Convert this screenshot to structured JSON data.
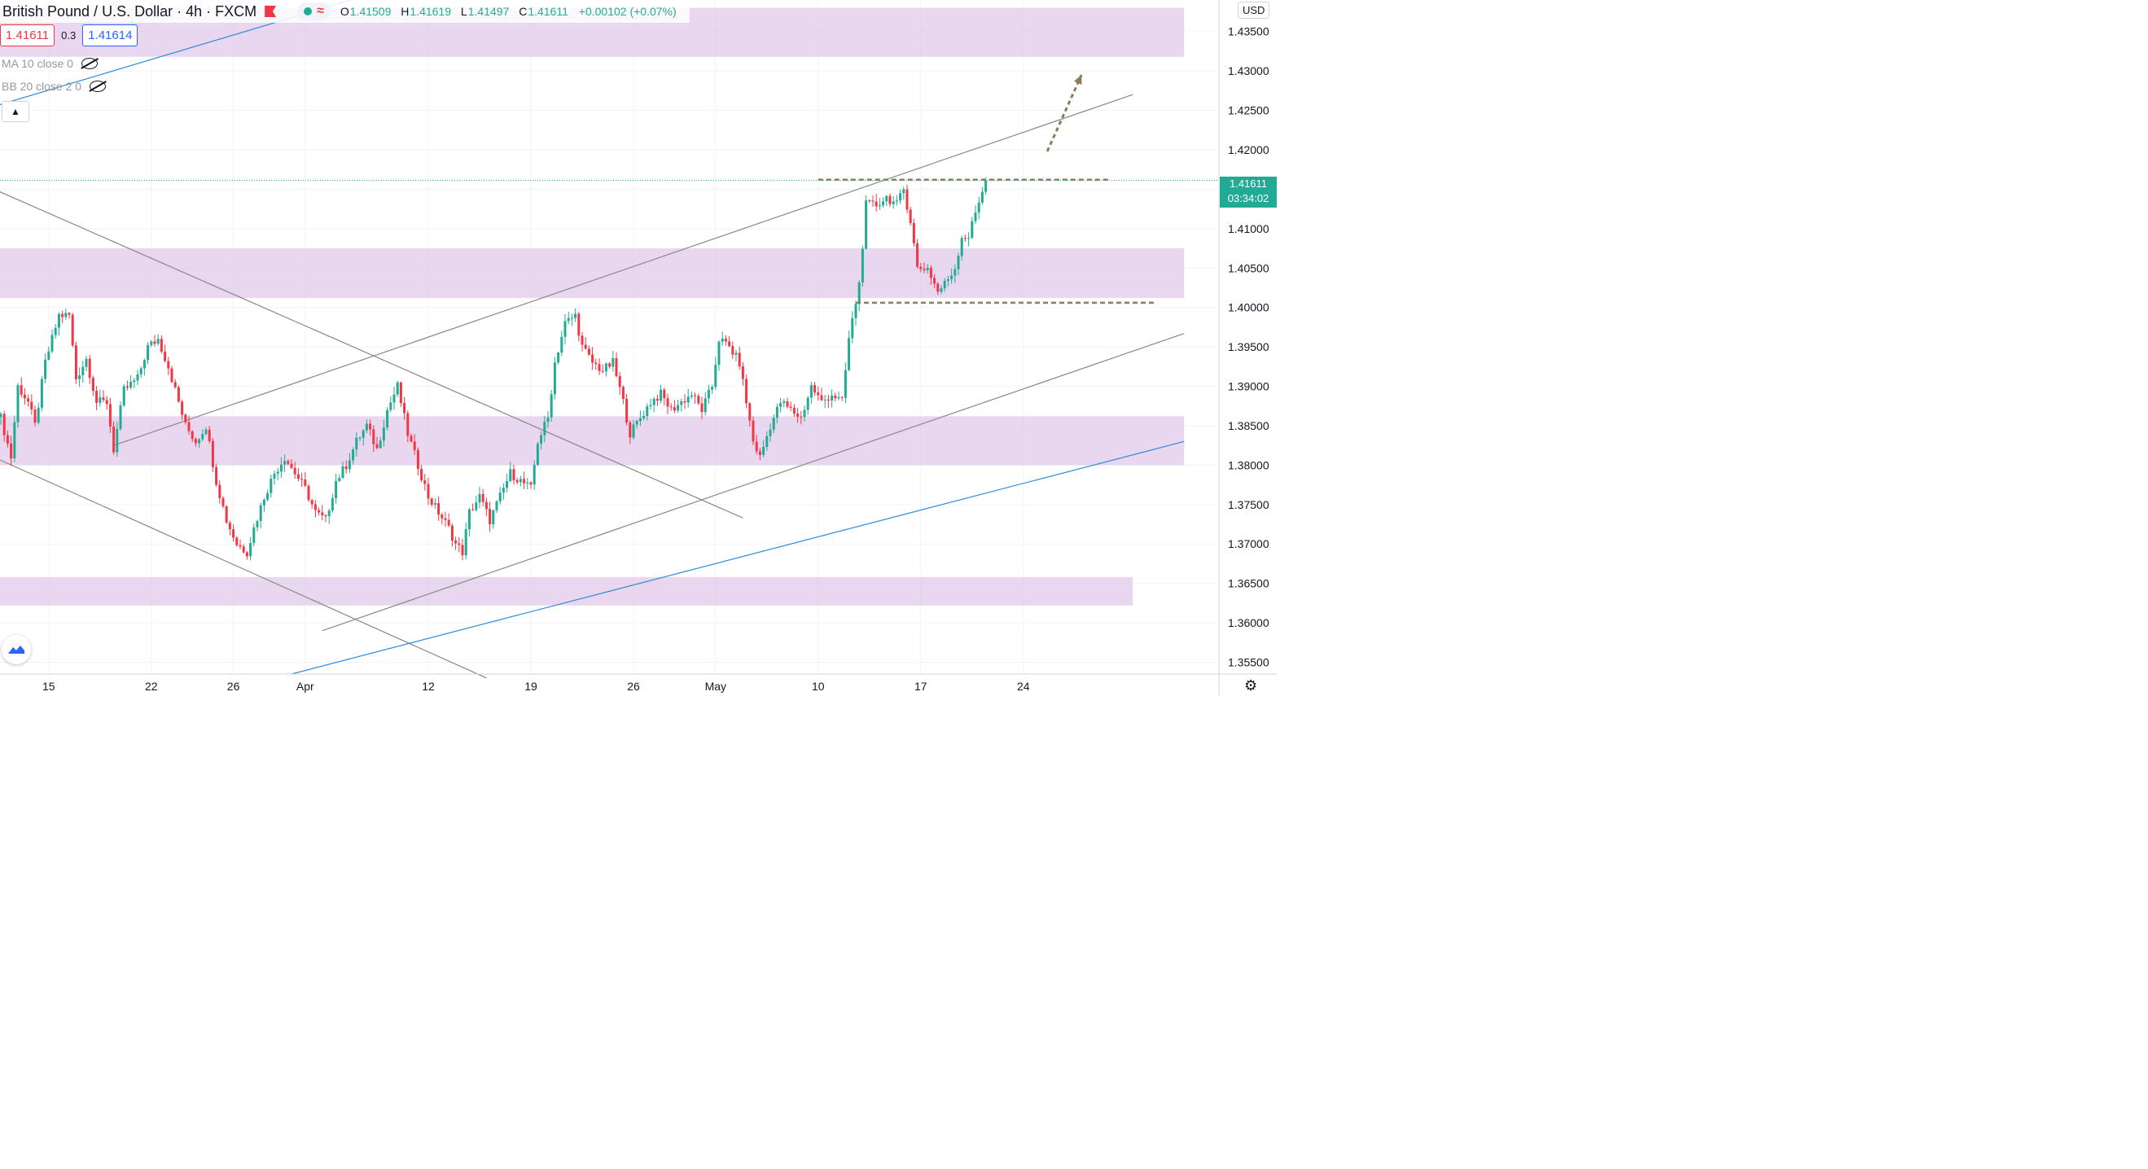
{
  "header": {
    "symbol": "British Pound / U.S. Dollar · 4h · FXCM",
    "ohlc": {
      "o_label": "O",
      "o": "1.41509",
      "h_label": "H",
      "h": "1.41619",
      "l_label": "L",
      "l": "1.41497",
      "c_label": "C",
      "c": "1.41611",
      "change": "+0.00102 (+0.07%)"
    }
  },
  "trade": {
    "sell": "1.41611",
    "spread": "0.3",
    "buy": "1.41614"
  },
  "indicators": [
    "MA 10 close 0",
    "BB 20 close 2 0"
  ],
  "currency": "USD",
  "last_price": {
    "price": "1.41611",
    "countdown": "03:34:02"
  },
  "colors": {
    "up": "#22ab94",
    "down": "#f23645",
    "zone": "#e1c8ea",
    "trendline": "#888888",
    "blue_line": "#2e8ad8",
    "level_dash": "#8c7d5a"
  },
  "icons": [
    "eye-hidden-icon",
    "chevron-up-icon",
    "flag-icon",
    "tradingview-logo-icon",
    "settings-icon"
  ],
  "chart_data": {
    "type": "candlestick",
    "y_ticks": [
      "1.43500",
      "1.43000",
      "1.42500",
      "1.42000",
      "1.41500",
      "1.41000",
      "1.40500",
      "1.40000",
      "1.39500",
      "1.39000",
      "1.38500",
      "1.38000",
      "1.37500",
      "1.37000",
      "1.36500",
      "1.36000",
      "1.35500"
    ],
    "x_ticks": [
      {
        "label": "15",
        "i": 14
      },
      {
        "label": "22",
        "i": 44
      },
      {
        "label": "26",
        "i": 68
      },
      {
        "label": "Apr",
        "i": 89
      },
      {
        "label": "12",
        "i": 125
      },
      {
        "label": "19",
        "i": 155
      },
      {
        "label": "26",
        "i": 185
      },
      {
        "label": "May",
        "i": 209
      },
      {
        "label": "10",
        "i": 239
      },
      {
        "label": "17",
        "i": 269
      },
      {
        "label": "24",
        "i": 299
      }
    ],
    "ylim": [
      1.3535,
      1.439
    ],
    "x_slots": 328,
    "anchors": [
      [
        0,
        1.386
      ],
      [
        3,
        1.381
      ],
      [
        5,
        1.39
      ],
      [
        8,
        1.388
      ],
      [
        10,
        1.385
      ],
      [
        13,
        1.393
      ],
      [
        17,
        1.399
      ],
      [
        20,
        1.399
      ],
      [
        22,
        1.391
      ],
      [
        25,
        1.3935
      ],
      [
        28,
        1.388
      ],
      [
        31,
        1.388
      ],
      [
        33,
        1.382
      ],
      [
        36,
        1.3895
      ],
      [
        40,
        1.391
      ],
      [
        43,
        1.395
      ],
      [
        46,
        1.396
      ],
      [
        49,
        1.3925
      ],
      [
        52,
        1.388
      ],
      [
        54,
        1.385
      ],
      [
        57,
        1.383
      ],
      [
        60,
        1.385
      ],
      [
        63,
        1.378
      ],
      [
        66,
        1.373
      ],
      [
        69,
        1.37
      ],
      [
        72,
        1.369
      ],
      [
        74,
        1.372
      ],
      [
        77,
        1.376
      ],
      [
        80,
        1.379
      ],
      [
        83,
        1.381
      ],
      [
        86,
        1.379
      ],
      [
        89,
        1.377
      ],
      [
        92,
        1.374
      ],
      [
        95,
        1.373
      ],
      [
        98,
        1.378
      ],
      [
        101,
        1.38
      ],
      [
        104,
        1.383
      ],
      [
        107,
        1.385
      ],
      [
        110,
        1.382
      ],
      [
        113,
        1.387
      ],
      [
        116,
        1.39
      ],
      [
        119,
        1.384
      ],
      [
        122,
        1.38
      ],
      [
        125,
        1.376
      ],
      [
        128,
        1.374
      ],
      [
        131,
        1.372
      ],
      [
        133,
        1.37
      ],
      [
        135,
        1.369
      ],
      [
        137,
        1.374
      ],
      [
        140,
        1.376
      ],
      [
        143,
        1.373
      ],
      [
        146,
        1.376
      ],
      [
        149,
        1.379
      ],
      [
        152,
        1.378
      ],
      [
        155,
        1.377
      ],
      [
        157,
        1.383
      ],
      [
        160,
        1.386
      ],
      [
        162,
        1.393
      ],
      [
        165,
        1.398
      ],
      [
        168,
        1.399
      ],
      [
        170,
        1.395
      ],
      [
        173,
        1.393
      ],
      [
        176,
        1.392
      ],
      [
        179,
        1.393
      ],
      [
        182,
        1.388
      ],
      [
        184,
        1.384
      ],
      [
        187,
        1.386
      ],
      [
        190,
        1.388
      ],
      [
        193,
        1.389
      ],
      [
        196,
        1.387
      ],
      [
        199,
        1.388
      ],
      [
        202,
        1.389
      ],
      [
        205,
        1.387
      ],
      [
        208,
        1.39
      ],
      [
        210,
        1.396
      ],
      [
        213,
        1.395
      ],
      [
        216,
        1.393
      ],
      [
        218,
        1.388
      ],
      [
        220,
        1.383
      ],
      [
        222,
        1.381
      ],
      [
        225,
        1.385
      ],
      [
        228,
        1.388
      ],
      [
        231,
        1.387
      ],
      [
        234,
        1.386
      ],
      [
        237,
        1.39
      ],
      [
        240,
        1.388
      ],
      [
        243,
        1.389
      ],
      [
        246,
        1.388
      ],
      [
        248,
        1.396
      ],
      [
        251,
        1.403
      ],
      [
        253,
        1.413
      ],
      [
        256,
        1.413
      ],
      [
        259,
        1.414
      ],
      [
        262,
        1.413
      ],
      [
        264,
        1.415
      ],
      [
        266,
        1.411
      ],
      [
        268,
        1.405
      ],
      [
        271,
        1.405
      ],
      [
        274,
        1.402
      ],
      [
        276,
        1.403
      ],
      [
        279,
        1.405
      ],
      [
        281,
        1.409
      ],
      [
        283,
        1.409
      ],
      [
        285,
        1.412
      ],
      [
        287,
        1.415
      ],
      [
        288,
        1.4161
      ]
    ],
    "lines": [
      {
        "kind": "trend",
        "p1": [
          -2,
          1.415
        ],
        "p2": [
          217,
          1.3733
        ]
      },
      {
        "kind": "trend",
        "p1": [
          -2,
          1.381
        ],
        "p2": [
          142,
          1.353
        ]
      },
      {
        "kind": "trend",
        "p1": [
          33,
          1.3825
        ],
        "p2": [
          331,
          1.427
        ]
      },
      {
        "kind": "trend",
        "p1": [
          94,
          1.359
        ],
        "p2": [
          346,
          1.3967
        ]
      },
      {
        "kind": "blue",
        "p1": [
          85,
          1.3535
        ],
        "p2": [
          346,
          1.383
        ]
      },
      {
        "kind": "blue",
        "p1": [
          -2,
          1.4255
        ],
        "p2": [
          110,
          1.44
        ]
      }
    ],
    "zones": [
      {
        "top": 1.438,
        "bottom": 1.4318,
        "right": 346
      },
      {
        "top": 1.4075,
        "bottom": 1.4012,
        "right": 346
      },
      {
        "top": 1.3862,
        "bottom": 1.38,
        "right": 346
      },
      {
        "top": 1.3658,
        "bottom": 1.3622,
        "right": 331
      }
    ],
    "levels": [
      {
        "y": 1.4162,
        "x1": 239,
        "x2": 324
      },
      {
        "y": 1.4006,
        "x1": 250,
        "x2": 338
      }
    ],
    "projection": {
      "from": [
        306,
        1.4198
      ],
      "to": [
        316,
        1.4295
      ]
    }
  }
}
